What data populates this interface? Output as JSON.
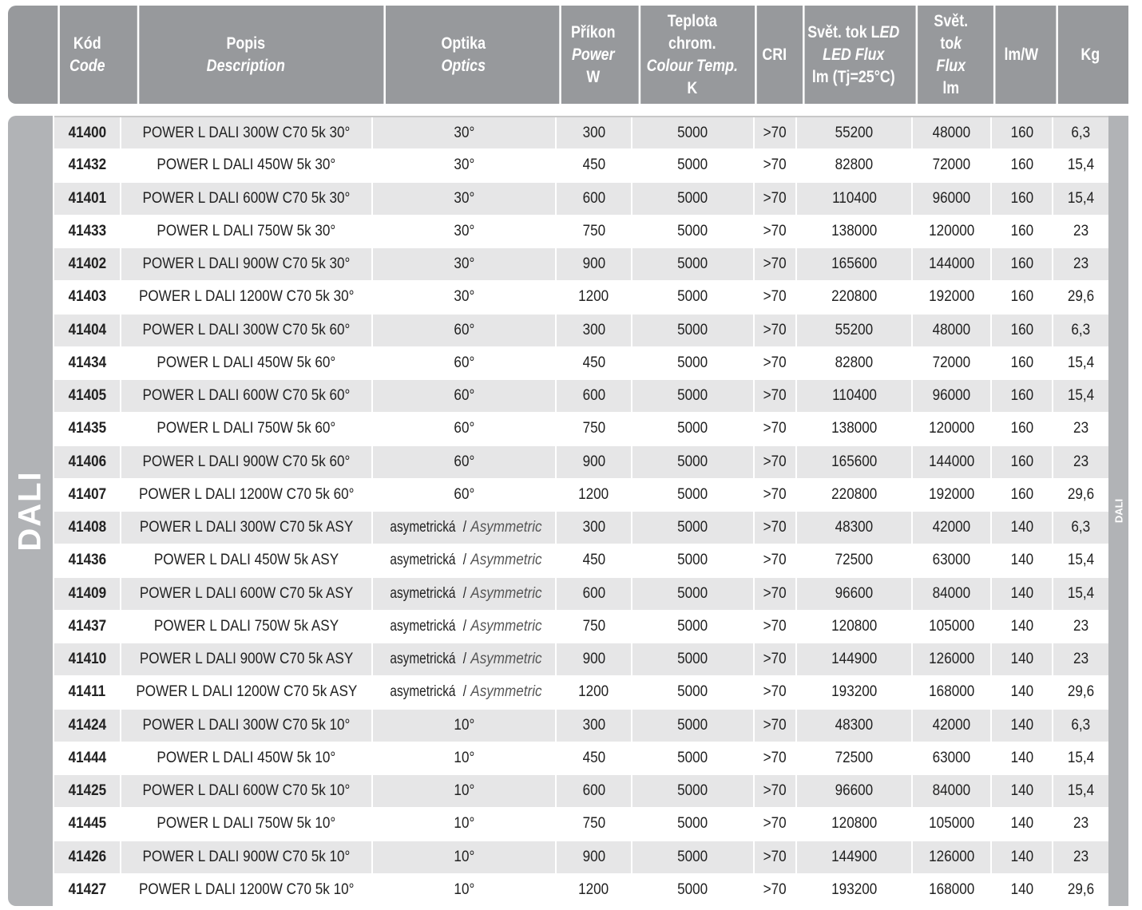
{
  "header": {
    "code": [
      "Kód",
      "Code"
    ],
    "description": [
      "Popis",
      "Description"
    ],
    "optics": [
      "Optika",
      "Optics"
    ],
    "power": [
      "Příkon",
      "Power",
      "W"
    ],
    "colour_temp": [
      "Teplota",
      "chrom.",
      "Colour Temp.",
      "K"
    ],
    "cri": "CRI",
    "led_flux": [
      "Svět. tok L",
      "ED",
      "LED Flux",
      "lm (Tj=25°C)"
    ],
    "flux": [
      "Svět.",
      "to",
      "k",
      "Flux",
      "lm"
    ],
    "efficacy": "lm/W",
    "weight": "Kg"
  },
  "section_label": "DALI",
  "side_label": "DALI",
  "asym": [
    "asymetrická",
    " / ",
    "Asymmetric"
  ],
  "rows": [
    [
      "41400",
      "POWER L DALI 300W C70 5k 30°",
      "30°",
      "300",
      "5000",
      ">70",
      "55200",
      "48000",
      "160",
      "6,3"
    ],
    [
      "41432",
      "POWER L DALI 450W 5k 30°",
      "30°",
      "450",
      "5000",
      ">70",
      "82800",
      "72000",
      "160",
      "15,4"
    ],
    [
      "41401",
      "POWER L DALI 600W C70 5k 30°",
      "30°",
      "600",
      "5000",
      ">70",
      "110400",
      "96000",
      "160",
      "15,4"
    ],
    [
      "41433",
      "POWER L DALI 750W 5k 30°",
      "30°",
      "750",
      "5000",
      ">70",
      "138000",
      "120000",
      "160",
      "23"
    ],
    [
      "41402",
      "POWER L DALI 900W C70 5k 30°",
      "30°",
      "900",
      "5000",
      ">70",
      "165600",
      "144000",
      "160",
      "23"
    ],
    [
      "41403",
      "POWER L DALI 1200W C70 5k 30°",
      "30°",
      "1200",
      "5000",
      ">70",
      "220800",
      "192000",
      "160",
      "29,6"
    ],
    [
      "41404",
      "POWER L DALI 300W C70 5k 60°",
      "60°",
      "300",
      "5000",
      ">70",
      "55200",
      "48000",
      "160",
      "6,3"
    ],
    [
      "41434",
      "POWER L DALI 450W 5k 60°",
      "60°",
      "450",
      "5000",
      ">70",
      "82800",
      "72000",
      "160",
      "15,4"
    ],
    [
      "41405",
      "POWER L DALI 600W C70 5k 60°",
      "60°",
      "600",
      "5000",
      ">70",
      "110400",
      "96000",
      "160",
      "15,4"
    ],
    [
      "41435",
      "POWER L DALI 750W 5k 60°",
      "60°",
      "750",
      "5000",
      ">70",
      "138000",
      "120000",
      "160",
      "23"
    ],
    [
      "41406",
      "POWER L DALI 900W C70 5k 60°",
      "60°",
      "900",
      "5000",
      ">70",
      "165600",
      "144000",
      "160",
      "23"
    ],
    [
      "41407",
      "POWER L DALI 1200W C70 5k 60°",
      "60°",
      "1200",
      "5000",
      ">70",
      "220800",
      "192000",
      "160",
      "29,6"
    ],
    [
      "41408",
      "POWER L DALI 300W C70 5k ASY",
      "ASYM",
      "300",
      "5000",
      ">70",
      "48300",
      "42000",
      "140",
      "6,3"
    ],
    [
      "41436",
      "POWER L DALI 450W 5k ASY",
      "ASYM",
      "450",
      "5000",
      ">70",
      "72500",
      "63000",
      "140",
      "15,4"
    ],
    [
      "41409",
      "POWER L DALI 600W C70 5k ASY",
      "ASYM",
      "600",
      "5000",
      ">70",
      "96600",
      "84000",
      "140",
      "15,4"
    ],
    [
      "41437",
      "POWER L DALI 750W 5k ASY",
      "ASYM",
      "750",
      "5000",
      ">70",
      "120800",
      "105000",
      "140",
      "23"
    ],
    [
      "41410",
      "POWER L DALI 900W C70 5k ASY",
      "ASYM",
      "900",
      "5000",
      ">70",
      "144900",
      "126000",
      "140",
      "23"
    ],
    [
      "41411",
      "POWER L DALI 1200W C70 5k ASY",
      "ASYM",
      "1200",
      "5000",
      ">70",
      "193200",
      "168000",
      "140",
      "29,6"
    ],
    [
      "41424",
      "POWER L DALI 300W C70 5k 10°",
      "10°",
      "300",
      "5000",
      ">70",
      "48300",
      "42000",
      "140",
      "6,3"
    ],
    [
      "41444",
      "POWER L DALI 450W 5k 10°",
      "10°",
      "450",
      "5000",
      ">70",
      "72500",
      "63000",
      "140",
      "15,4"
    ],
    [
      "41425",
      "POWER L DALI 600W C70 5k 10°",
      "10°",
      "600",
      "5000",
      ">70",
      "96600",
      "84000",
      "140",
      "15,4"
    ],
    [
      "41445",
      "POWER L DALI 750W 5k 10°",
      "10°",
      "750",
      "5000",
      ">70",
      "120800",
      "105000",
      "140",
      "23"
    ],
    [
      "41426",
      "POWER L DALI 900W C70 5k 10°",
      "10°",
      "900",
      "5000",
      ">70",
      "144900",
      "126000",
      "140",
      "23"
    ],
    [
      "41427",
      "POWER L DALI 1200W C70 5k 10°",
      "10°",
      "1200",
      "5000",
      ">70",
      "193200",
      "168000",
      "140",
      "29,6"
    ]
  ],
  "colors": {
    "header_bg": "#97999c",
    "tab_bg": "#b1b3b6",
    "row_alt": "#e6e6e7"
  }
}
